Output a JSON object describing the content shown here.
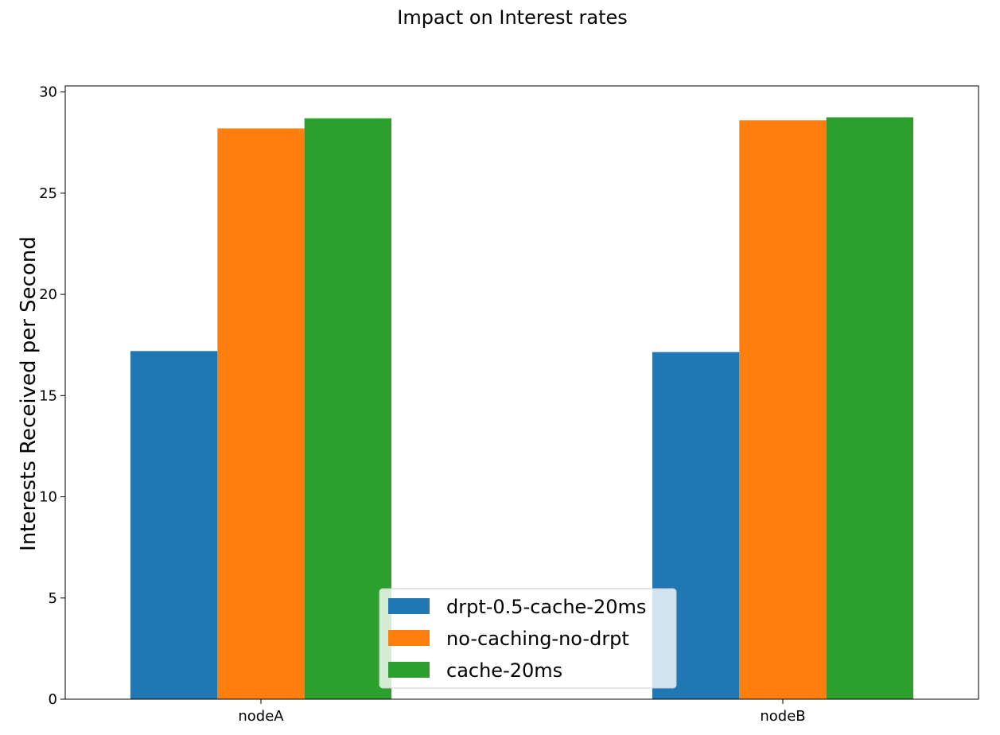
{
  "chart_data": {
    "type": "bar",
    "title": "Impact on Interest rates",
    "xlabel": "",
    "ylabel": "Interests Received per Second",
    "categories": [
      "nodeA",
      "nodeB"
    ],
    "ylim": [
      0,
      30.3
    ],
    "yticks": [
      0,
      5,
      10,
      15,
      20,
      25,
      30
    ],
    "grid": false,
    "legend_position": "bottom-center",
    "series": [
      {
        "name": "drpt-0.5-cache-20ms",
        "color": "#1f77b4",
        "values": [
          17.2,
          17.15
        ]
      },
      {
        "name": "no-caching-no-drpt",
        "color": "#ff7f0e",
        "values": [
          28.2,
          28.6
        ]
      },
      {
        "name": "cache-20ms",
        "color": "#2ca02c",
        "values": [
          28.7,
          28.75
        ]
      }
    ]
  }
}
